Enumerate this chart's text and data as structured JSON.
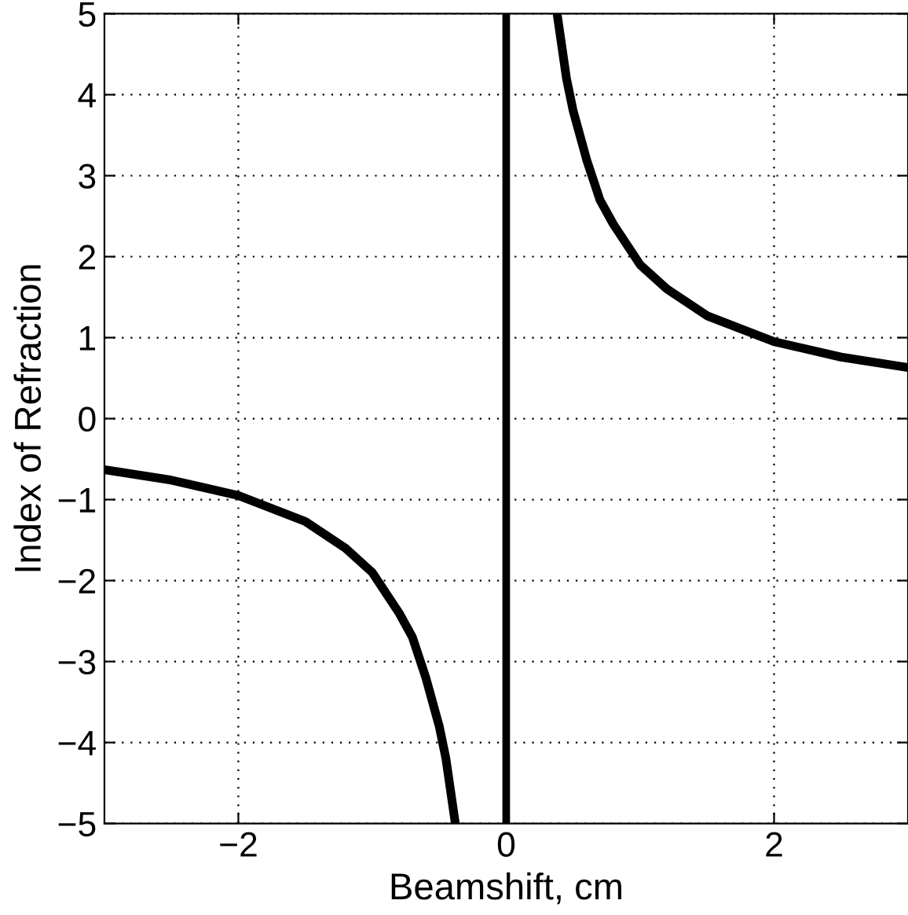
{
  "chart_data": {
    "type": "line",
    "xlabel": "Beamshift, cm",
    "ylabel": "Index of Refraction",
    "series": [
      {
        "color": "#000000",
        "x": [
          -3.0,
          -2.5,
          -2.0,
          -1.5,
          -1.2,
          -1.0,
          -0.8,
          -0.7,
          -0.6,
          -0.5,
          -0.45,
          -0.38
        ],
        "values": [
          -0.63,
          -0.76,
          -0.95,
          -1.27,
          -1.6,
          -1.9,
          -2.4,
          -2.7,
          -3.2,
          -3.8,
          -4.2,
          -5.0
        ]
      },
      {
        "color": "#000000",
        "x": [
          0.38,
          0.45,
          0.5,
          0.6,
          0.7,
          0.8,
          1.0,
          1.2,
          1.5,
          2.0,
          2.5,
          3.0
        ],
        "values": [
          5.0,
          4.2,
          3.8,
          3.2,
          2.7,
          2.4,
          1.9,
          1.6,
          1.27,
          0.95,
          0.76,
          0.63
        ]
      }
    ],
    "ref_lines": [
      {
        "axis": "x",
        "value": 0,
        "color": "#000000",
        "line_style": "solid"
      }
    ],
    "xlim": [
      -3,
      3
    ],
    "ylim": [
      -5,
      5
    ],
    "xticks": [
      {
        "value": -2,
        "label": "−2"
      },
      0,
      2
    ],
    "yticks": [
      {
        "value": -5,
        "label": "−5"
      },
      {
        "value": -4,
        "label": "−4"
      },
      {
        "value": -3,
        "label": "−3"
      },
      {
        "value": -2,
        "label": "−2"
      },
      {
        "value": -1,
        "label": "−1"
      },
      0,
      1,
      2,
      3,
      4,
      5
    ],
    "grid": true,
    "line_style": "solid",
    "marker": "none"
  }
}
